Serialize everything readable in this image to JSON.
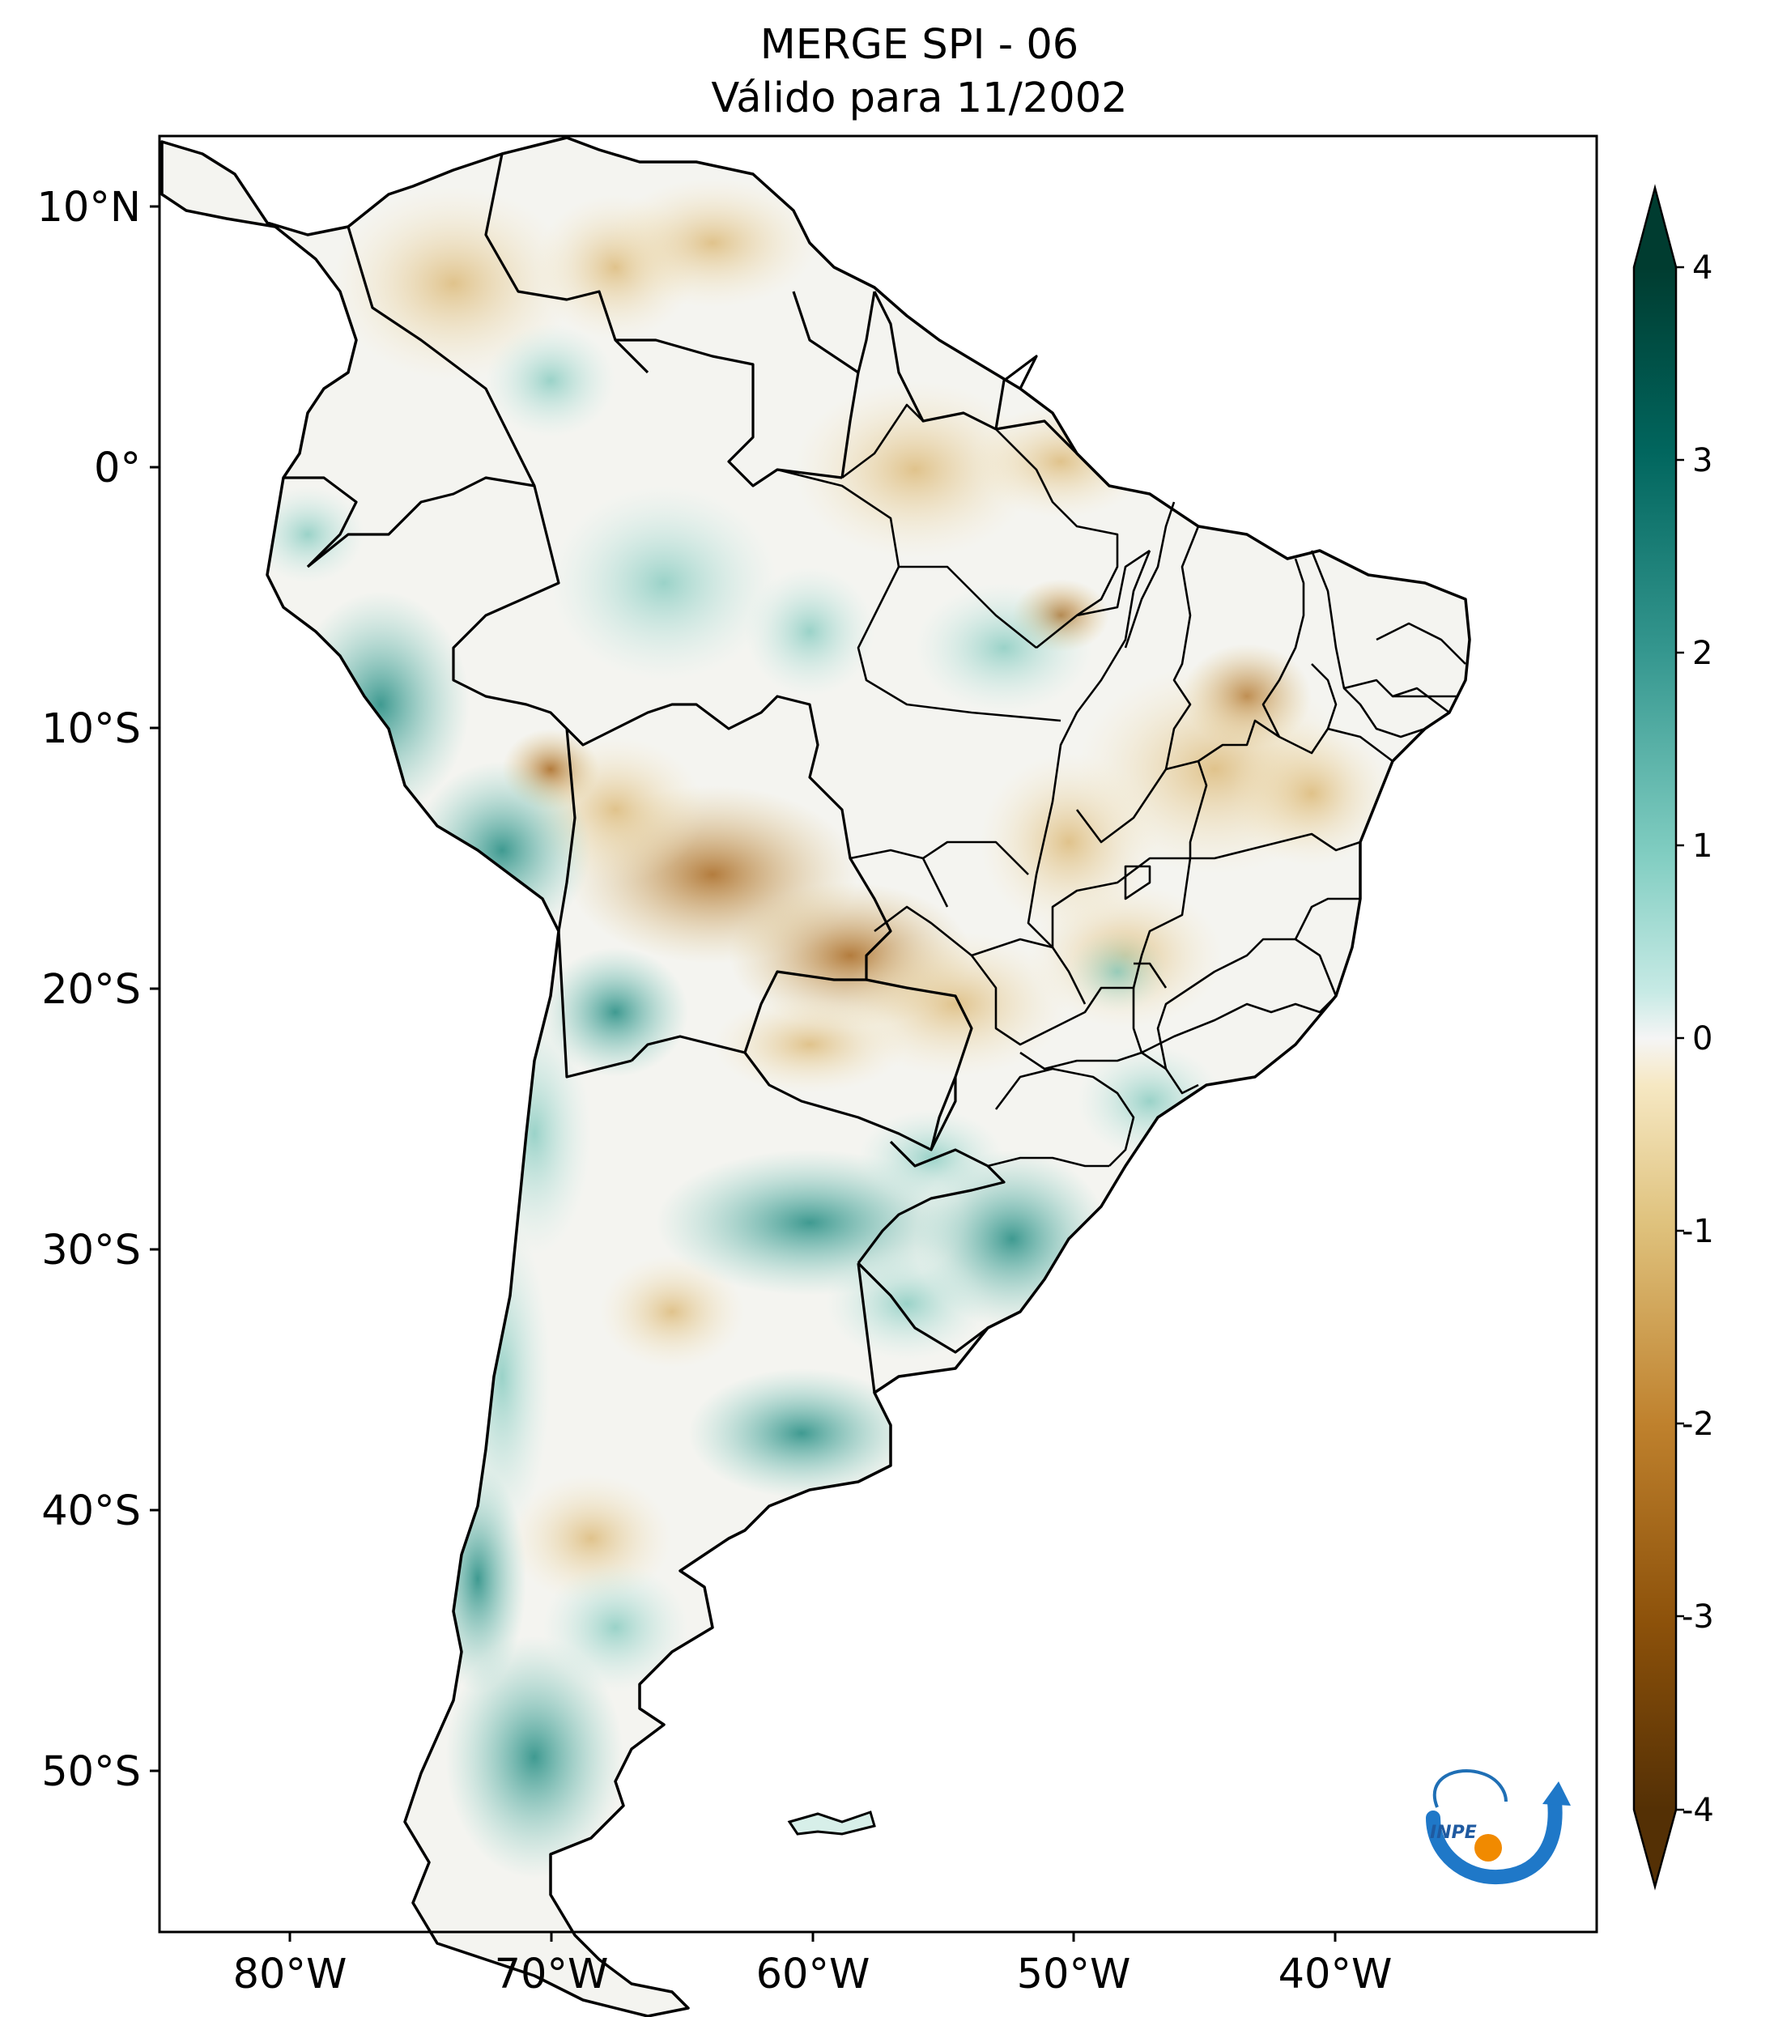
{
  "title": {
    "line1": "MERGE   SPI - 06",
    "line2": "Válido para 11/2002"
  },
  "map": {
    "region": "South America",
    "lon_range": [
      -85,
      -30
    ],
    "lat_range": [
      -56,
      13
    ],
    "lat_ticks": [
      "10°N",
      "0°",
      "10°S",
      "20°S",
      "30°S",
      "40°S",
      "50°S"
    ],
    "lon_ticks": [
      "80°W",
      "70°W",
      "60°W",
      "50°W",
      "40°W"
    ]
  },
  "colorbar": {
    "ticks": [
      "4",
      "3",
      "2",
      "1",
      "0",
      "-1",
      "-2",
      "-3",
      "-4"
    ],
    "colors": {
      "dry_extreme": "#543005",
      "dry": "#bf812d",
      "neutral": "#f5f5f5",
      "wet": "#80cdc1",
      "wet_extreme": "#003c30"
    }
  },
  "logo": {
    "text": "INPE"
  },
  "chart_data": {
    "type": "heatmap",
    "variable": "SPI",
    "colorbar_range": [
      -4,
      4
    ],
    "colorbar_extends": "both"
  }
}
